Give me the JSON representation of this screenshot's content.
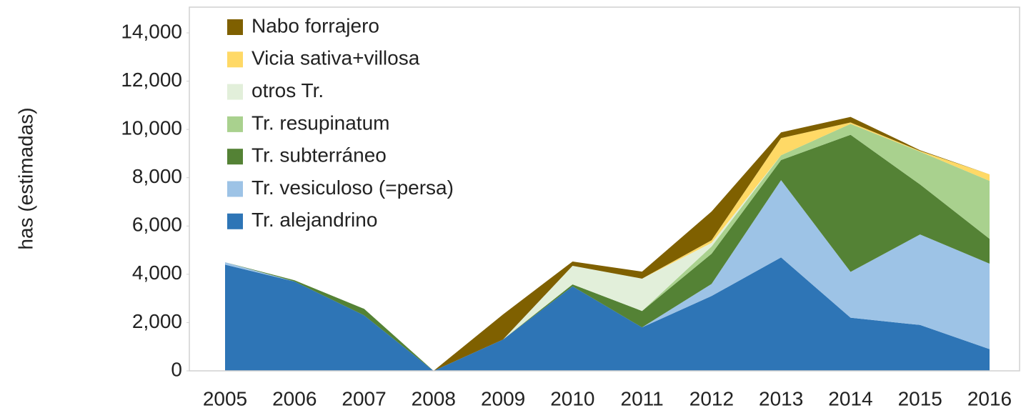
{
  "chart_data": {
    "type": "stacked_area",
    "y_label": "has (estimadas)",
    "categories": [
      "2005",
      "2006",
      "2007",
      "2008",
      "2009",
      "2010",
      "2011",
      "2012",
      "2013",
      "2014",
      "2015",
      "2016"
    ],
    "ylim": [
      0,
      14000
    ],
    "yticks": [
      0,
      {
        "value": 2000,
        "label": "2,000"
      },
      {
        "value": 4000,
        "label": "4,000"
      },
      {
        "value": 6000,
        "label": "6,000"
      },
      {
        "value": 8000,
        "label": "8,000"
      },
      {
        "value": 10000,
        "label": "10,000"
      },
      {
        "value": 12000,
        "label": "12,000"
      },
      {
        "value": 14000,
        "label": "14,000"
      }
    ],
    "legend": "upper left",
    "series": [
      {
        "name": "Tr. alejandrino",
        "color": "#2e75b6",
        "values": [
          4400,
          3700,
          2300,
          0,
          1300,
          3500,
          1800,
          3100,
          4700,
          2200,
          1900,
          900
        ]
      },
      {
        "name": "Tr. vesiculoso (=persa)",
        "color": "#9dc3e6",
        "values": [
          100,
          0,
          0,
          0,
          0,
          0,
          0,
          500,
          3200,
          1900,
          3750,
          3540
        ]
      },
      {
        "name": "Tr. subterráneo",
        "color": "#548235",
        "values": [
          0,
          50,
          270,
          0,
          0,
          80,
          680,
          1250,
          830,
          5680,
          2070,
          1030
        ]
      },
      {
        "name": "Tr. resupinatum",
        "color": "#a9d18e",
        "values": [
          0,
          0,
          0,
          0,
          0,
          0,
          0,
          300,
          200,
          450,
          1360,
          2400
        ]
      },
      {
        "name": "otros Tr.",
        "color": "#e2efda",
        "values": [
          0,
          0,
          0,
          0,
          0,
          770,
          1340,
          150,
          0,
          0,
          0,
          0
        ]
      },
      {
        "name": "Vicia sativa+villosa",
        "color": "#ffd966",
        "values": [
          0,
          0,
          0,
          0,
          0,
          0,
          0,
          110,
          710,
          60,
          30,
          270
        ]
      },
      {
        "name": "Nabo forrajero",
        "color": "#7f6000",
        "values": [
          0,
          0,
          0,
          0,
          1040,
          180,
          290,
          1190,
          240,
          230,
          30,
          0
        ]
      }
    ]
  }
}
